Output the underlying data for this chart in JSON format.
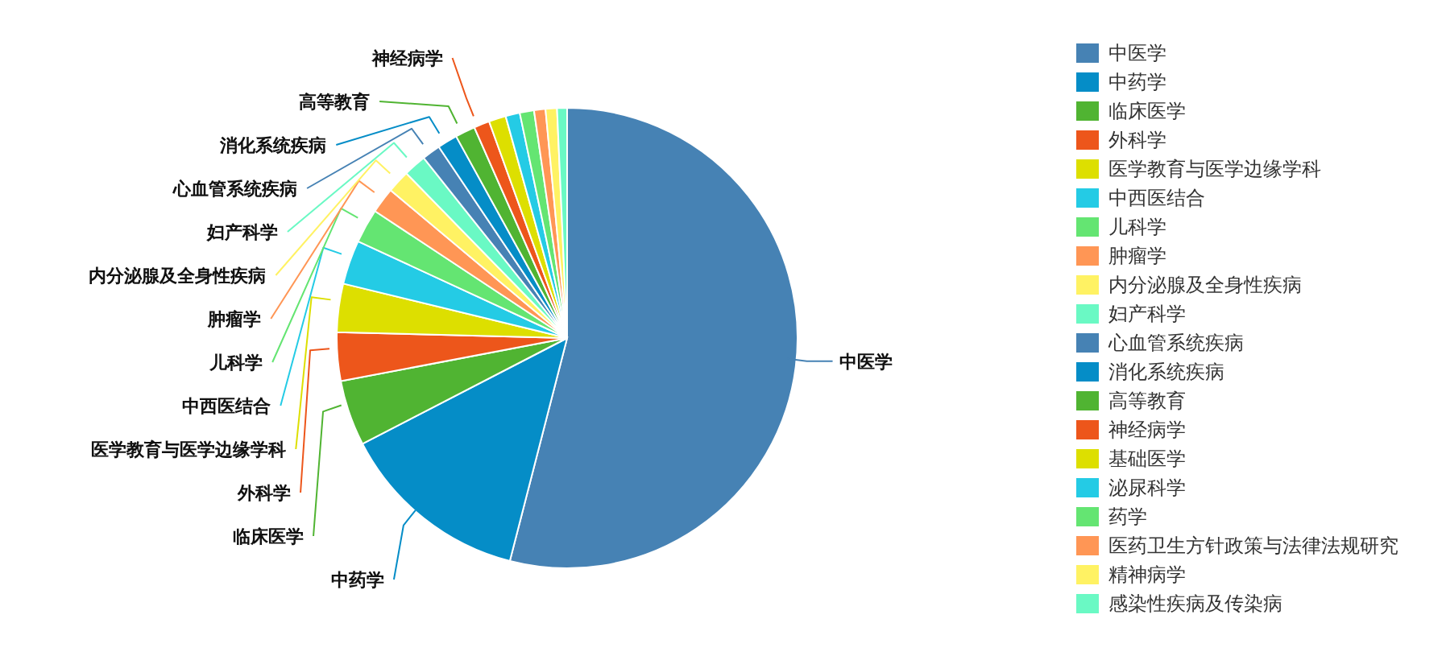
{
  "chart_data": {
    "type": "pie",
    "categories": [
      "中医学",
      "中药学",
      "临床医学",
      "外科学",
      "医学教育与医学边缘学科",
      "中西医结合",
      "儿科学",
      "肿瘤学",
      "内分泌腺及全身性疾病",
      "妇产科学",
      "心血管系统疾病",
      "消化系统疾病",
      "高等教育",
      "神经病学",
      "基础医学",
      "泌尿科学",
      "药学",
      "医药卫生方针政策与法律法规研究",
      "精神病学",
      "感染性疾病及传染病"
    ],
    "values": [
      54.0,
      13.4,
      4.6,
      3.4,
      3.4,
      3.1,
      2.4,
      1.8,
      1.6,
      1.6,
      1.3,
      1.4,
      1.4,
      1.1,
      1.2,
      1.0,
      1.0,
      0.8,
      0.8,
      0.7
    ],
    "colors": [
      "#4682b4",
      "#058dc7",
      "#50b432",
      "#ed561b",
      "#dddf00",
      "#24cbe5",
      "#64e572",
      "#ff9655",
      "#fff263",
      "#6af9c4",
      "#4682b4",
      "#058dc7",
      "#50b432",
      "#ed561b",
      "#dddf00",
      "#24cbe5",
      "#64e572",
      "#ff9655",
      "#fff263",
      "#6af9c4"
    ],
    "legend": "right"
  }
}
